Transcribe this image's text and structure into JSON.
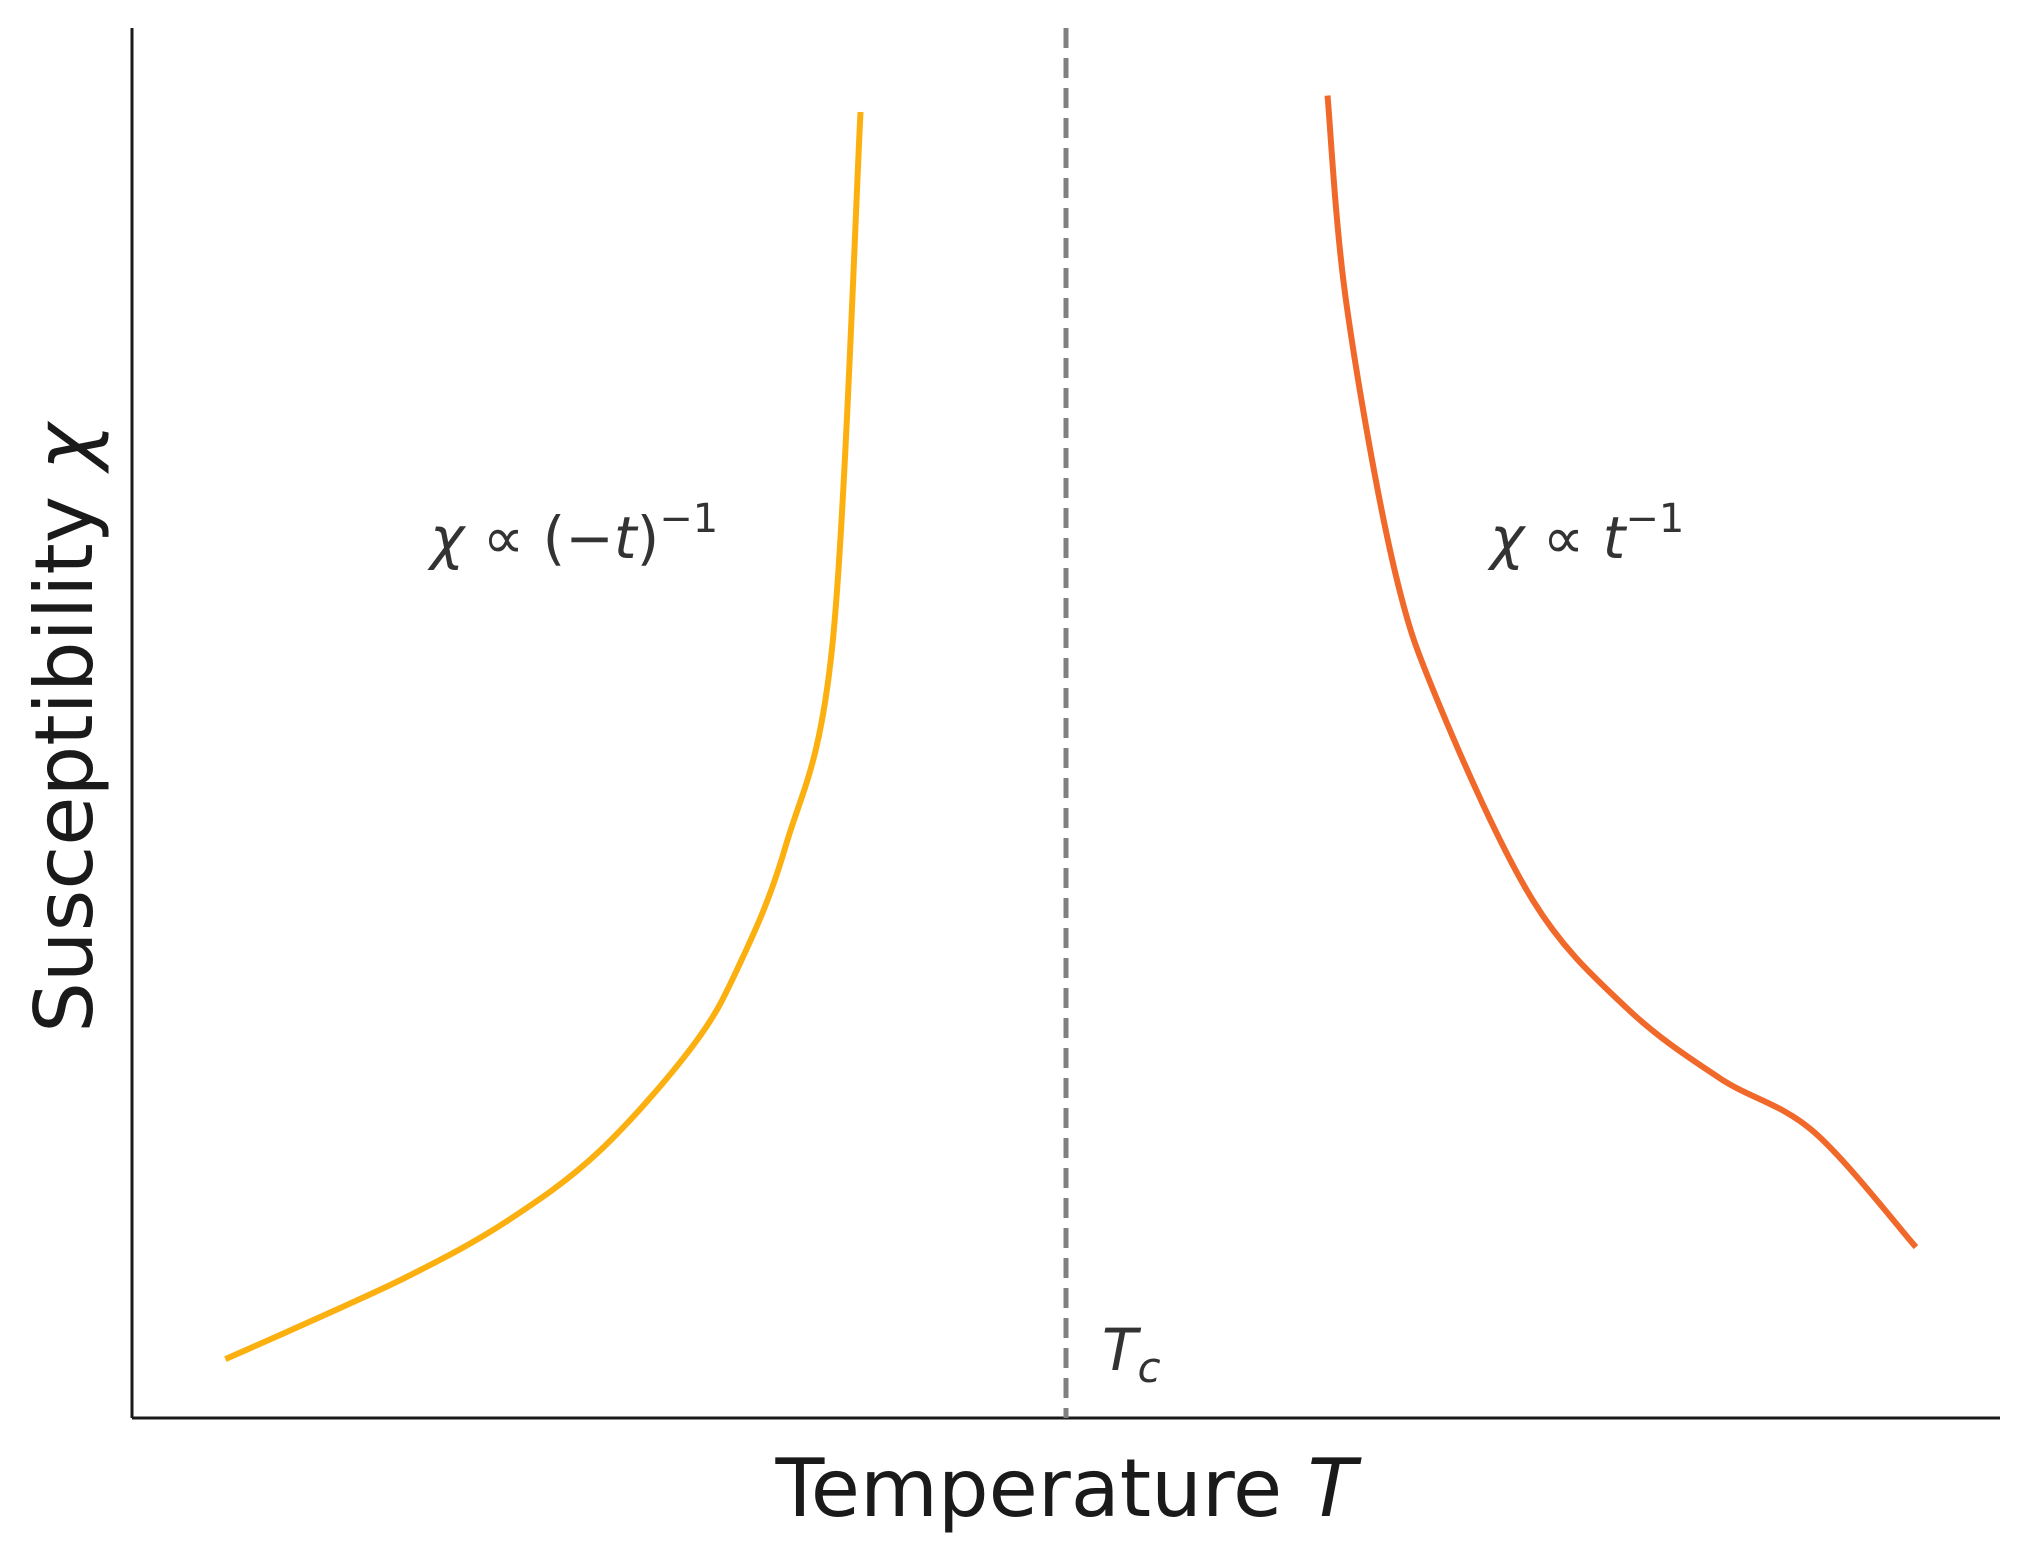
{
  "chart_data": {
    "type": "line",
    "xlabel": "Temperature",
    "xlabel_symbol": "T",
    "ylabel": "Susceptibility",
    "ylabel_symbol": "χ",
    "xlim": [
      -1.0,
      1.0
    ],
    "ylim": [
      0,
      14.4
    ],
    "grid": false,
    "critical_line": {
      "x": 0,
      "label_base": "T",
      "label_sub": "c",
      "color": "#808080",
      "style": "dashed"
    },
    "series": [
      {
        "color": "#fbb010",
        "x": [
          -0.9,
          -0.8,
          -0.7,
          -0.6,
          -0.5,
          -0.4,
          -0.35,
          -0.3,
          -0.25,
          -0.22
        ],
        "y": [
          0.61,
          1.04,
          1.49,
          2.03,
          2.76,
          3.85,
          4.69,
          5.93,
          8.02,
          13.53
        ],
        "annotation": {
          "text_parts": [
            "χ",
            " ∝ (−",
            "t",
            ")",
            "−1"
          ]
        }
      },
      {
        "color": "#f1692a",
        "x": [
          0.28,
          0.3,
          0.35,
          0.4,
          0.5,
          0.6,
          0.7,
          0.8,
          0.91
        ],
        "y": [
          13.7,
          11.56,
          8.86,
          7.38,
          5.36,
          4.25,
          3.52,
          2.97,
          1.77
        ],
        "annotation": {
          "text_parts": [
            "χ",
            " ∝ ",
            "t",
            "−1"
          ]
        }
      }
    ]
  }
}
